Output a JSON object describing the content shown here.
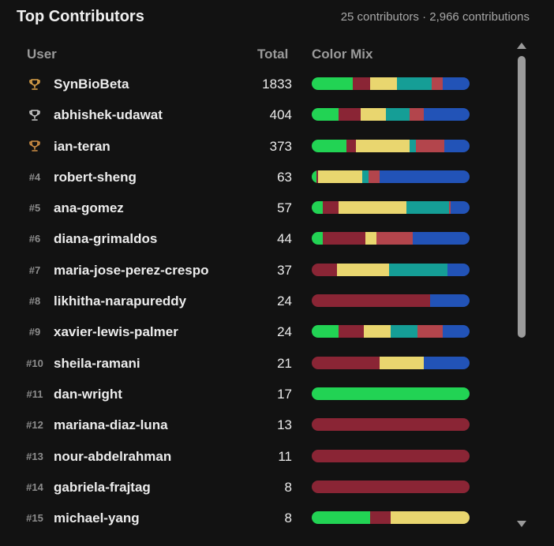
{
  "header": {
    "title": "Top Contributors",
    "summary": "25 contributors · 2,966 contributions"
  },
  "columns": {
    "user": "User",
    "total": "Total",
    "mix": "Color Mix"
  },
  "colors": {
    "green": "#22d354",
    "maroon": "#8a2535",
    "yellow": "#e9d66f",
    "teal": "#159e96",
    "red": "#b3454c",
    "blue": "#2253b7",
    "gold": "#e0a54a",
    "silver": "#c9c9c9",
    "bronze": "#d08f45"
  },
  "rows": [
    {
      "rank": "",
      "trophy": "gold-trophy-icon",
      "name": "SynBioBeta",
      "total": "1833",
      "mix": [
        [
          "green",
          26
        ],
        [
          "maroon",
          11
        ],
        [
          "yellow",
          17
        ],
        [
          "teal",
          22
        ],
        [
          "red",
          7
        ],
        [
          "blue",
          17
        ]
      ]
    },
    {
      "rank": "",
      "trophy": "silver-trophy-icon",
      "name": "abhishek-udawat",
      "total": "404",
      "mix": [
        [
          "green",
          17
        ],
        [
          "maroon",
          14
        ],
        [
          "yellow",
          16
        ],
        [
          "teal",
          15
        ],
        [
          "red",
          9
        ],
        [
          "blue",
          29
        ]
      ]
    },
    {
      "rank": "",
      "trophy": "bronze-trophy-icon",
      "name": "ian-teran",
      "total": "373",
      "mix": [
        [
          "green",
          22
        ],
        [
          "maroon",
          6
        ],
        [
          "yellow",
          34
        ],
        [
          "teal",
          4
        ],
        [
          "red",
          18
        ],
        [
          "blue",
          16
        ]
      ]
    },
    {
      "rank": "#4",
      "trophy": "",
      "name": "robert-sheng",
      "total": "63",
      "mix": [
        [
          "green",
          3
        ],
        [
          "maroon",
          1
        ],
        [
          "yellow",
          28
        ],
        [
          "teal",
          4
        ],
        [
          "red",
          7
        ],
        [
          "blue",
          57
        ]
      ]
    },
    {
      "rank": "#5",
      "trophy": "",
      "name": "ana-gomez",
      "total": "57",
      "mix": [
        [
          "green",
          7
        ],
        [
          "maroon",
          10
        ],
        [
          "yellow",
          43
        ],
        [
          "teal",
          27
        ],
        [
          "red",
          1
        ],
        [
          "blue",
          12
        ]
      ]
    },
    {
      "rank": "#6",
      "trophy": "",
      "name": "diana-grimaldos",
      "total": "44",
      "mix": [
        [
          "green",
          7
        ],
        [
          "maroon",
          27
        ],
        [
          "yellow",
          7
        ],
        [
          "red",
          23
        ],
        [
          "blue",
          36
        ]
      ]
    },
    {
      "rank": "#7",
      "trophy": "",
      "name": "maria-jose-perez-crespo",
      "total": "37",
      "mix": [
        [
          "maroon",
          16
        ],
        [
          "yellow",
          33
        ],
        [
          "teal",
          37
        ],
        [
          "blue",
          14
        ]
      ]
    },
    {
      "rank": "#8",
      "trophy": "",
      "name": "likhitha-narapureddy",
      "total": "24",
      "mix": [
        [
          "maroon",
          75
        ],
        [
          "blue",
          25
        ]
      ]
    },
    {
      "rank": "#9",
      "trophy": "",
      "name": "xavier-lewis-palmer",
      "total": "24",
      "mix": [
        [
          "green",
          17
        ],
        [
          "maroon",
          16
        ],
        [
          "yellow",
          17
        ],
        [
          "teal",
          17
        ],
        [
          "red",
          16
        ],
        [
          "blue",
          17
        ]
      ]
    },
    {
      "rank": "#10",
      "trophy": "",
      "name": "sheila-ramani",
      "total": "21",
      "mix": [
        [
          "maroon",
          43
        ],
        [
          "yellow",
          28
        ],
        [
          "blue",
          29
        ]
      ]
    },
    {
      "rank": "#11",
      "trophy": "",
      "name": "dan-wright",
      "total": "17",
      "mix": [
        [
          "green",
          100
        ]
      ]
    },
    {
      "rank": "#12",
      "trophy": "",
      "name": "mariana-diaz-luna",
      "total": "13",
      "mix": [
        [
          "maroon",
          100
        ]
      ]
    },
    {
      "rank": "#13",
      "trophy": "",
      "name": "nour-abdelrahman",
      "total": "11",
      "mix": [
        [
          "maroon",
          100
        ]
      ]
    },
    {
      "rank": "#14",
      "trophy": "",
      "name": "gabriela-frajtag",
      "total": "8",
      "mix": [
        [
          "maroon",
          100
        ]
      ]
    },
    {
      "rank": "#15",
      "trophy": "",
      "name": "michael-yang",
      "total": "8",
      "mix": [
        [
          "green",
          37
        ],
        [
          "maroon",
          13
        ],
        [
          "yellow",
          50
        ]
      ]
    }
  ]
}
